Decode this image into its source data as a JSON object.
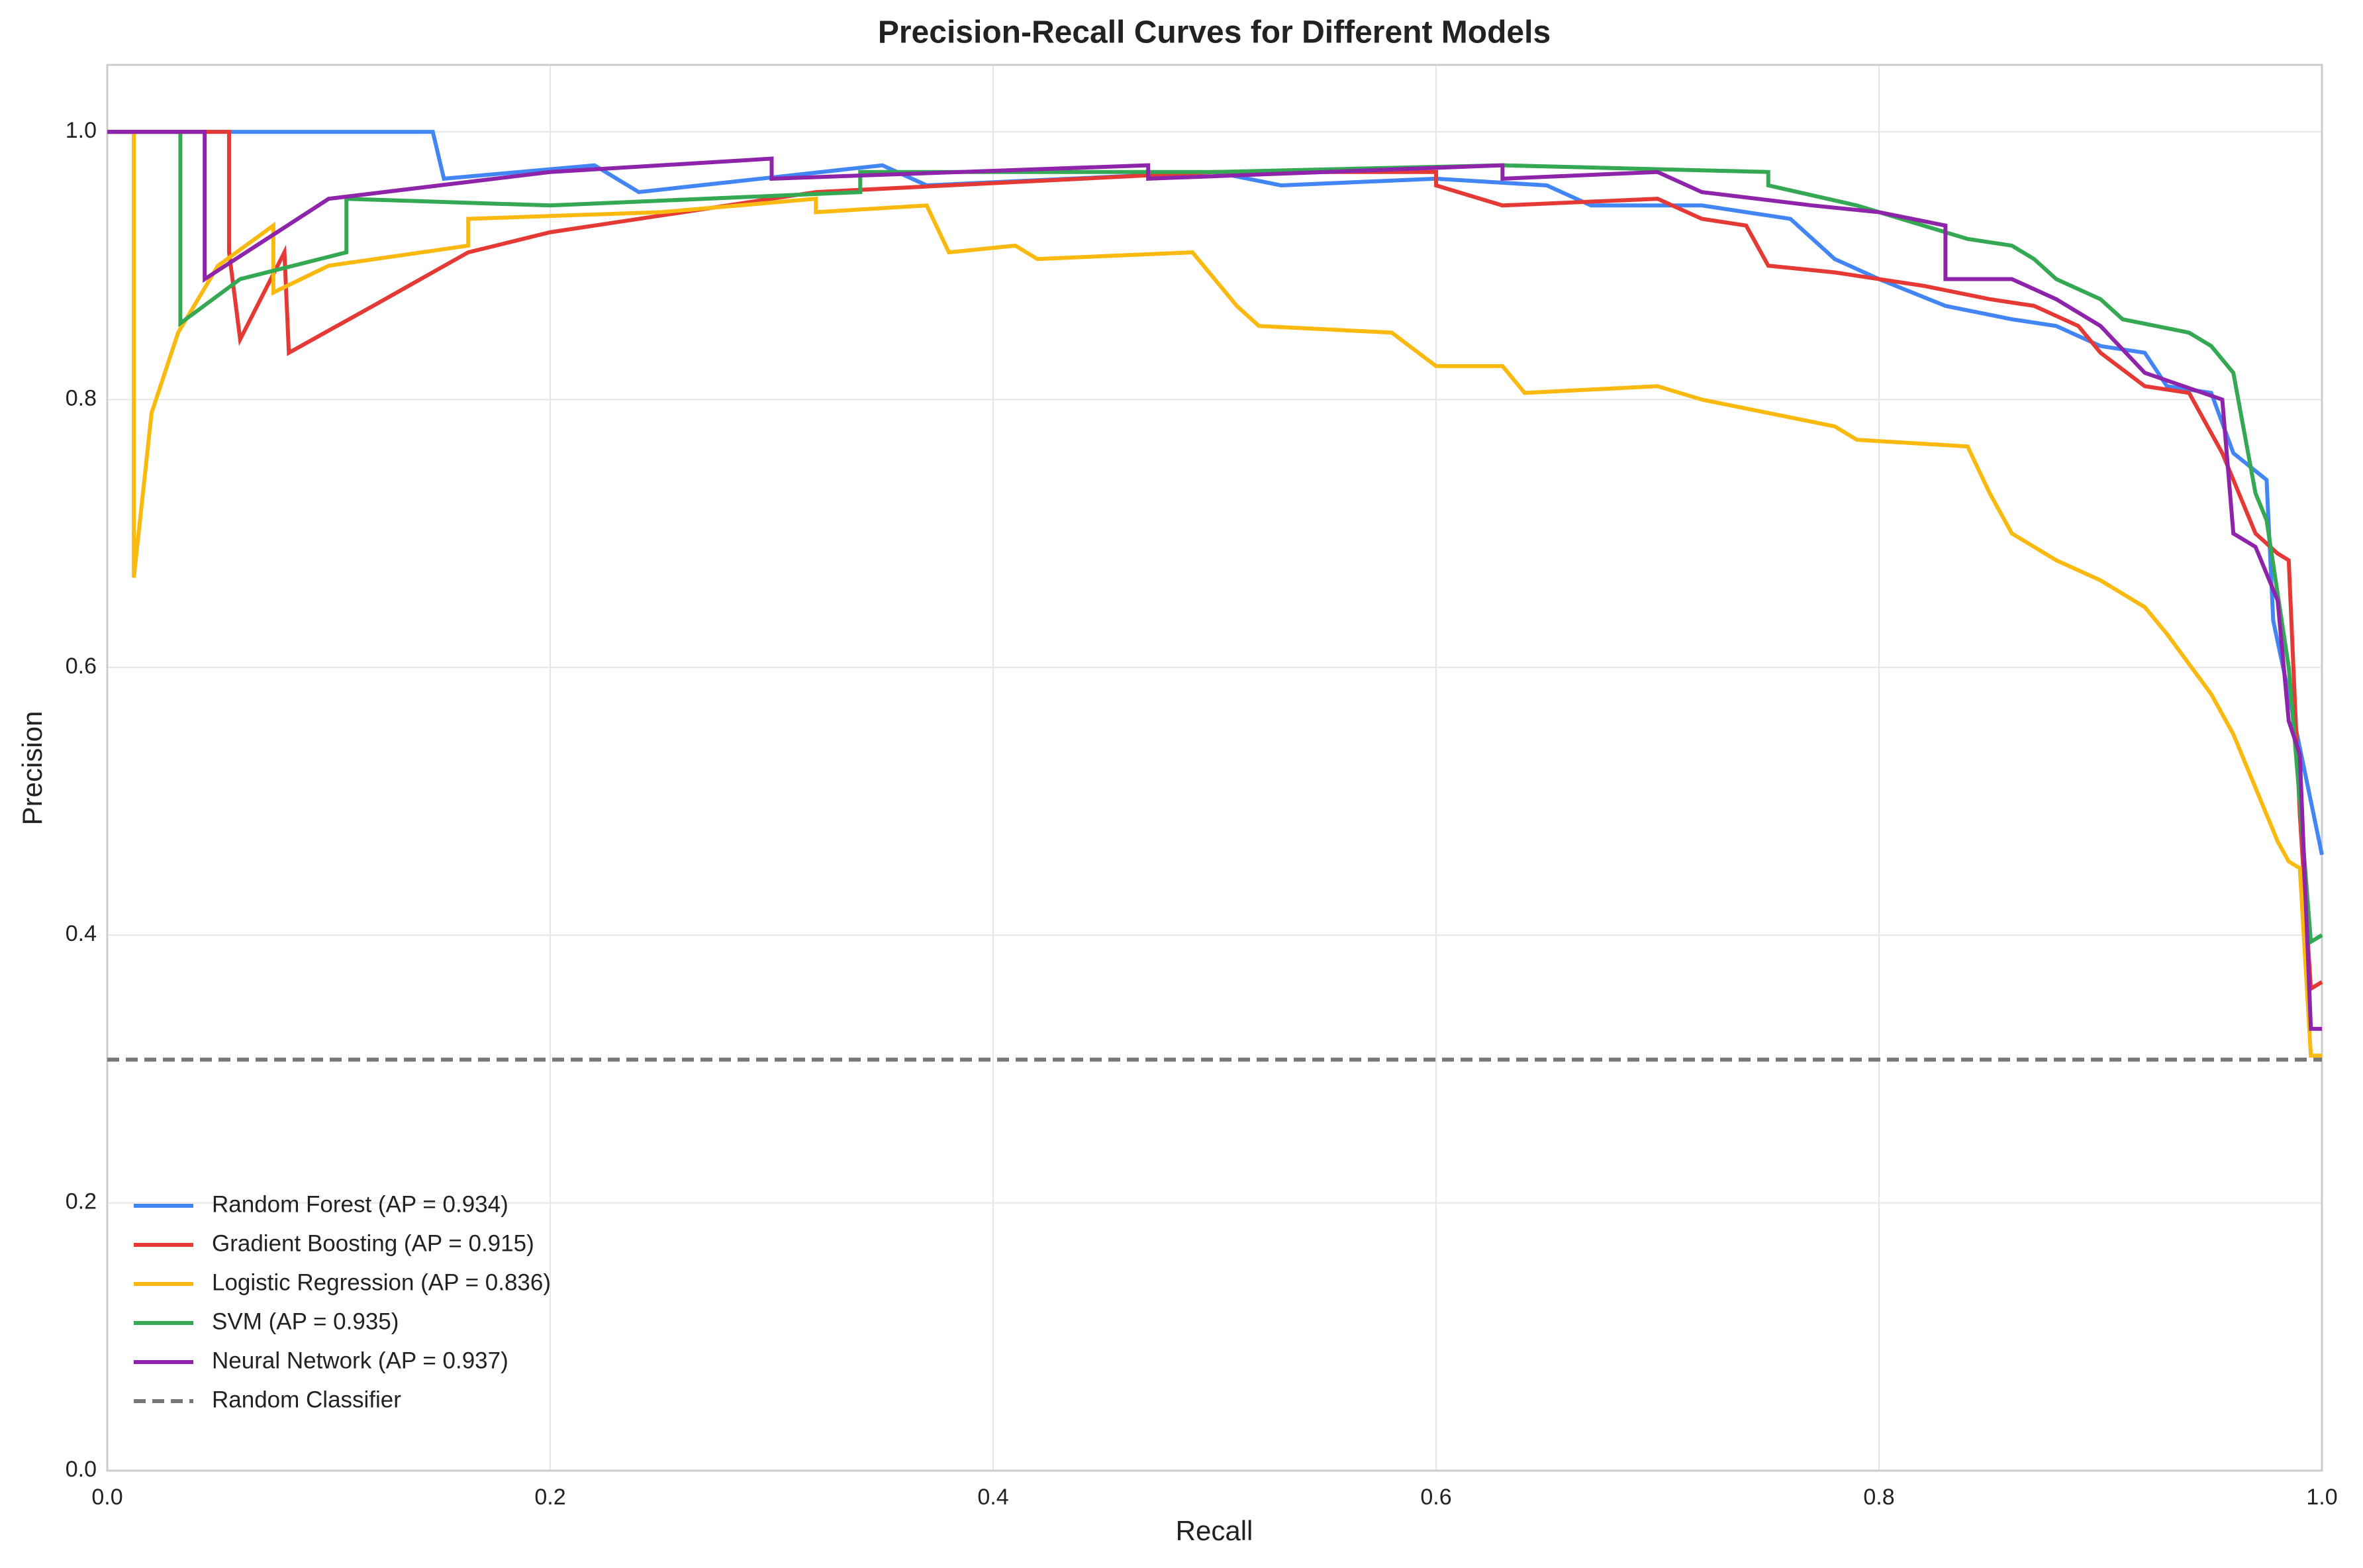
{
  "chart_data": {
    "type": "line",
    "title": "Precision-Recall Curves for Different Models",
    "x_label": "Recall",
    "y_label": "Precision",
    "xlim": [
      0,
      1
    ],
    "ylim": [
      0,
      1.05
    ],
    "xticks": [
      {
        "value": 0,
        "label": "0.0"
      },
      0.2,
      0.4,
      0.6,
      0.8,
      {
        "value": 1,
        "label": "1.0"
      }
    ],
    "yticks": [
      {
        "value": 0,
        "label": "0.0"
      },
      0.2,
      0.4,
      0.6,
      0.8,
      {
        "value": 1,
        "label": "1.0"
      }
    ],
    "grid": true,
    "legend": "lower left",
    "series": [
      {
        "name": "Random Forest (AP = 0.934)",
        "color": "#4285f4",
        "x": [
          0,
          0.147,
          0.152,
          0.22,
          0.24,
          0.35,
          0.37,
          0.5,
          0.53,
          0.6,
          0.65,
          0.67,
          0.72,
          0.76,
          0.78,
          0.8,
          0.83,
          0.86,
          0.88,
          0.9,
          0.92,
          0.93,
          0.95,
          0.96,
          0.975,
          0.978,
          0.985,
          1.0
        ],
        "values": [
          1.0,
          1.0,
          0.965,
          0.975,
          0.955,
          0.975,
          0.96,
          0.97,
          0.96,
          0.965,
          0.96,
          0.945,
          0.945,
          0.935,
          0.905,
          0.89,
          0.87,
          0.86,
          0.855,
          0.84,
          0.835,
          0.81,
          0.805,
          0.76,
          0.74,
          0.635,
          0.58,
          0.46
        ]
      },
      {
        "name": "Gradient Boosting (AP = 0.915)",
        "color": "#e53935",
        "x": [
          0,
          0.055,
          0.055,
          0.06,
          0.08,
          0.082,
          0.12,
          0.163,
          0.2,
          0.32,
          0.5,
          0.6,
          0.6,
          0.63,
          0.7,
          0.72,
          0.74,
          0.75,
          0.78,
          0.82,
          0.85,
          0.87,
          0.89,
          0.9,
          0.92,
          0.94,
          0.955,
          0.96,
          0.97,
          0.98,
          0.985,
          0.99,
          0.995,
          1.0
        ],
        "values": [
          1.0,
          1.0,
          0.91,
          0.845,
          0.91,
          0.835,
          0.87,
          0.91,
          0.925,
          0.955,
          0.97,
          0.97,
          0.96,
          0.945,
          0.95,
          0.935,
          0.93,
          0.9,
          0.895,
          0.885,
          0.875,
          0.87,
          0.855,
          0.835,
          0.81,
          0.805,
          0.76,
          0.74,
          0.7,
          0.685,
          0.68,
          0.49,
          0.36,
          0.365
        ]
      },
      {
        "name": "Logistic Regression (AP = 0.836)",
        "color": "#f9b90f",
        "x": [
          0,
          0.012,
          0.012,
          0.02,
          0.032,
          0.05,
          0.075,
          0.075,
          0.1,
          0.163,
          0.163,
          0.25,
          0.32,
          0.32,
          0.37,
          0.38,
          0.41,
          0.42,
          0.49,
          0.5,
          0.51,
          0.52,
          0.58,
          0.6,
          0.63,
          0.64,
          0.7,
          0.72,
          0.75,
          0.78,
          0.79,
          0.84,
          0.85,
          0.86,
          0.88,
          0.9,
          0.92,
          0.93,
          0.95,
          0.96,
          0.97,
          0.98,
          0.985,
          0.99,
          0.995,
          1.0
        ],
        "values": [
          1.0,
          1.0,
          0.667,
          0.79,
          0.85,
          0.9,
          0.93,
          0.88,
          0.9,
          0.915,
          0.935,
          0.94,
          0.95,
          0.94,
          0.945,
          0.91,
          0.915,
          0.905,
          0.91,
          0.89,
          0.87,
          0.855,
          0.85,
          0.825,
          0.825,
          0.805,
          0.81,
          0.8,
          0.79,
          0.78,
          0.77,
          0.765,
          0.73,
          0.7,
          0.68,
          0.665,
          0.645,
          0.625,
          0.58,
          0.55,
          0.51,
          0.47,
          0.455,
          0.45,
          0.31,
          0.31
        ]
      },
      {
        "name": "SVM (AP = 0.935)",
        "color": "#34a853",
        "x": [
          0,
          0.033,
          0.033,
          0.06,
          0.108,
          0.108,
          0.2,
          0.34,
          0.34,
          0.5,
          0.63,
          0.75,
          0.75,
          0.79,
          0.82,
          0.84,
          0.86,
          0.87,
          0.88,
          0.9,
          0.91,
          0.94,
          0.95,
          0.96,
          0.97,
          0.975,
          0.985,
          0.99,
          0.995,
          1.0
        ],
        "values": [
          1.0,
          1.0,
          0.857,
          0.89,
          0.91,
          0.95,
          0.945,
          0.955,
          0.97,
          0.97,
          0.975,
          0.97,
          0.96,
          0.945,
          0.93,
          0.92,
          0.915,
          0.905,
          0.89,
          0.875,
          0.86,
          0.85,
          0.84,
          0.82,
          0.73,
          0.71,
          0.6,
          0.5,
          0.395,
          0.4
        ]
      },
      {
        "name": "Neural Network (AP = 0.937)",
        "color": "#8e24aa",
        "x": [
          0,
          0.044,
          0.044,
          0.1,
          0.2,
          0.3,
          0.3,
          0.47,
          0.47,
          0.63,
          0.63,
          0.7,
          0.72,
          0.77,
          0.8,
          0.83,
          0.83,
          0.86,
          0.88,
          0.9,
          0.92,
          0.955,
          0.96,
          0.97,
          0.98,
          0.985,
          0.99,
          0.995,
          1.0
        ],
        "values": [
          1.0,
          1.0,
          0.89,
          0.95,
          0.97,
          0.98,
          0.965,
          0.975,
          0.965,
          0.975,
          0.965,
          0.97,
          0.955,
          0.945,
          0.94,
          0.93,
          0.89,
          0.89,
          0.875,
          0.855,
          0.82,
          0.8,
          0.7,
          0.69,
          0.65,
          0.56,
          0.535,
          0.33,
          0.33
        ]
      },
      {
        "name": "Random Classifier",
        "color": "#777777",
        "dashed": true,
        "x": [
          0,
          1
        ],
        "values": [
          0.307,
          0.307
        ]
      }
    ]
  }
}
